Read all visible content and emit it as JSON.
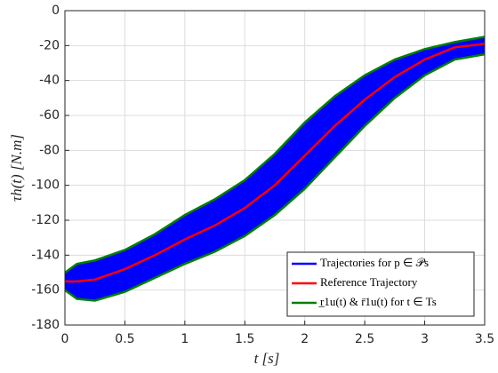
{
  "chart_data": {
    "type": "line",
    "xlabel": "t [s]",
    "ylabel": "τh(t) [N.m]",
    "x": [
      0,
      0.1,
      0.25,
      0.5,
      0.75,
      1.0,
      1.25,
      1.5,
      1.75,
      2.0,
      2.25,
      2.5,
      2.75,
      3.0,
      3.25,
      3.5
    ],
    "series": [
      {
        "name": "Trajectories for p ∈ 𝒫s",
        "color": "#0000ff",
        "type": "area"
      },
      {
        "name": "Reference Trajectory",
        "color": "#ff0000",
        "values": [
          -155,
          -155,
          -154,
          -148,
          -140,
          -131,
          -123,
          -113,
          -100,
          -83,
          -66,
          -51,
          -38,
          -28,
          -21,
          -19
        ]
      },
      {
        "name": "r̲1u(t) & r̄1u(t) for t ∈ Ts",
        "color": "#008000",
        "upper": [
          -150,
          -145,
          -143,
          -137,
          -128,
          -117,
          -108,
          -97,
          -82,
          -64,
          -49,
          -37,
          -28,
          -22,
          -18,
          -15
        ],
        "lower": [
          -160,
          -165,
          -166,
          -161,
          -153,
          -145,
          -138,
          -129,
          -117,
          -102,
          -84,
          -66,
          -50,
          -37,
          -28,
          -25
        ]
      }
    ],
    "xlim": [
      0,
      3.5
    ],
    "xticks": [
      0,
      0.5,
      1,
      1.5,
      2,
      2.5,
      3,
      3.5
    ],
    "ylim": [
      -180,
      0
    ],
    "yticks": [
      -180,
      -160,
      -140,
      -120,
      -100,
      -80,
      -60,
      -40,
      -20,
      0
    ],
    "grid": true,
    "legend": "lower right"
  }
}
